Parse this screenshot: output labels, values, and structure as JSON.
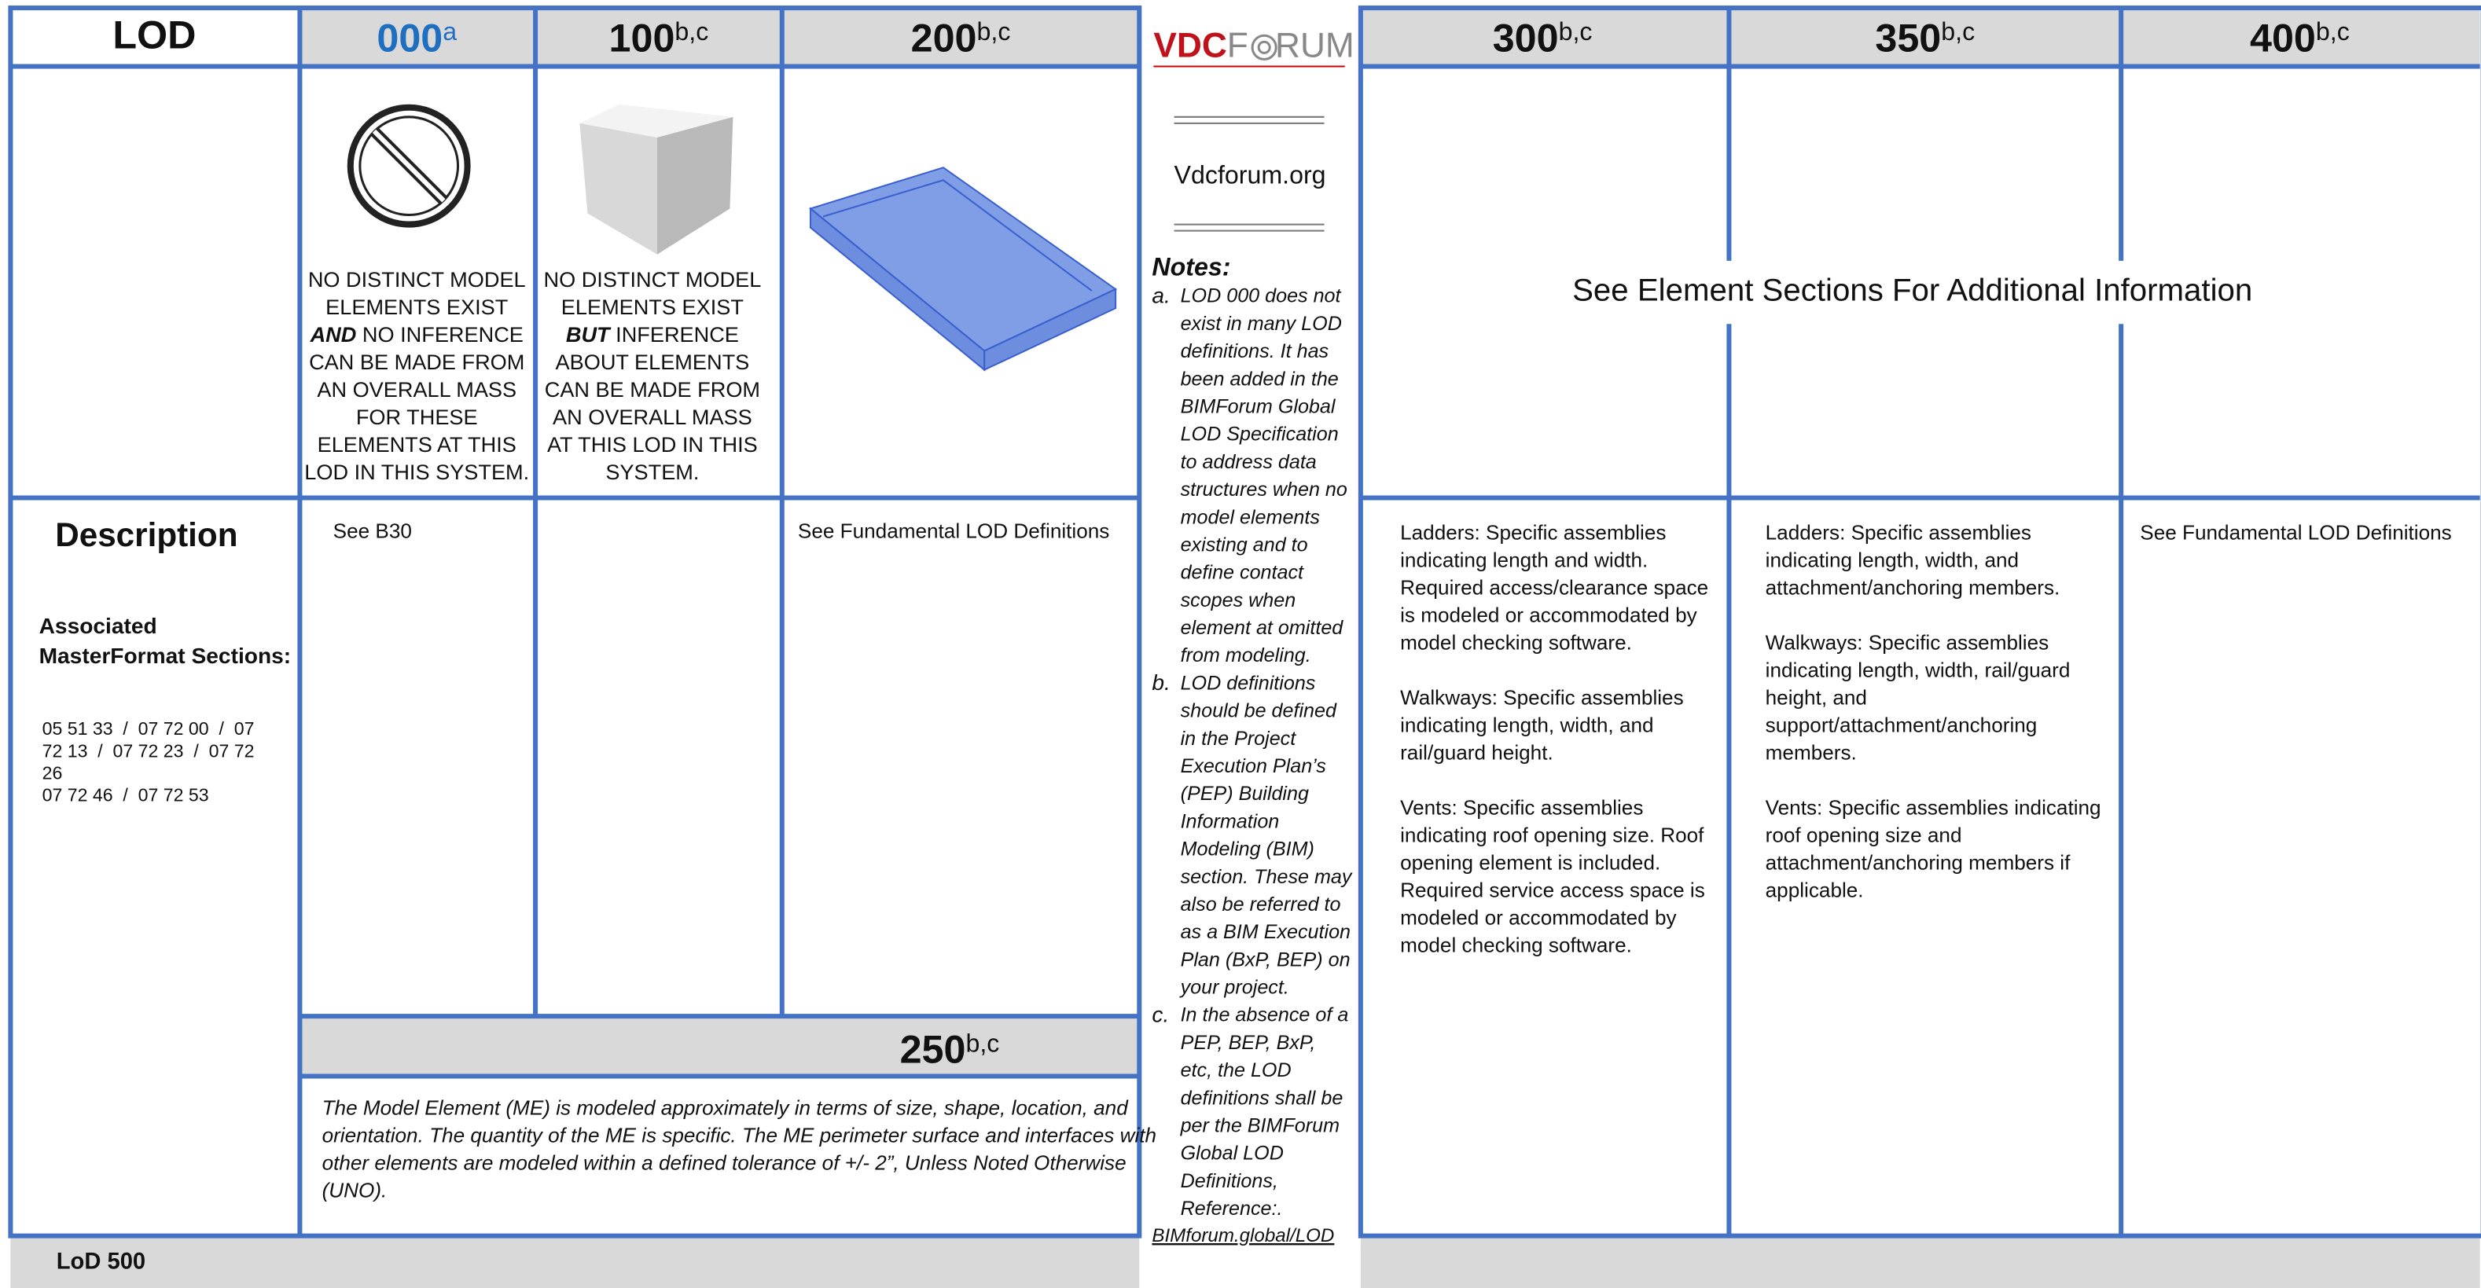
{
  "left_table": {
    "corner": "LOD",
    "columns": [
      {
        "level": "000",
        "note": "a"
      },
      {
        "level": "100",
        "note": "b,c"
      },
      {
        "level": "200",
        "note": "b,c"
      }
    ],
    "captions": [
      [
        [
          "NO DISTINCT MODEL"
        ],
        [
          "ELEMENTS EXIST"
        ],
        [
          "AND",
          " NO INFERENCE"
        ],
        [
          "CAN BE MADE FROM"
        ],
        [
          "AN OVERALL MASS"
        ],
        [
          "FOR THESE"
        ],
        [
          "ELEMENTS AT THIS"
        ],
        [
          "LOD IN THIS SYSTEM."
        ]
      ],
      [
        [
          "NO DISTINCT MODEL"
        ],
        [
          "ELEMENTS EXIST"
        ],
        [
          "BUT",
          " INFERENCE"
        ],
        [
          "ABOUT ELEMENTS"
        ],
        [
          "CAN BE MADE FROM"
        ],
        [
          "AN OVERALL MASS"
        ],
        [
          "AT THIS LOD IN THIS"
        ],
        [
          "SYSTEM."
        ]
      ]
    ],
    "description_title": "Description",
    "masterformat_title": [
      "Associated",
      "MasterFormat Sections:"
    ],
    "masterformat_codes": [
      "05 51 33  /  07 72 00  /  07",
      "72 13  /  07 72 23  /  07 72",
      "26",
      "07 72 46  /  07 72 53"
    ],
    "cells": {
      "000": "See B30",
      "200": "See Fundamental LOD Definitions"
    },
    "lod_250": {
      "level": "250",
      "note": "b,c",
      "text": [
        "The Model Element (ME) is modeled approximately in terms of size, shape, location, and",
        "orientation. The quantity of the ME is specific. The ME perimeter surface and interfaces with",
        "other elements are modeled within a defined tolerance of +/- 2”, Unless Noted Otherwise",
        "(UNO)."
      ]
    },
    "footer": "LoD 500"
  },
  "sidebar": {
    "logo": [
      "VDC",
      "F",
      "RUM"
    ],
    "site": "Vdcforum.org",
    "notes_title": "Notes:",
    "notes": [
      {
        "letter": "a.",
        "lines": [
          "LOD 000 does not",
          "exist in many LOD",
          "definitions. It has",
          "been added in the",
          "BIMForum Global",
          "LOD Specification",
          "to address data",
          "structures when no",
          "model elements",
          "existing and to",
          "define contact",
          "scopes when",
          "element at omitted",
          "from modeling."
        ]
      },
      {
        "letter": "b.",
        "lines": [
          "LOD definitions",
          "should be defined",
          "in the Project",
          "Execution Plan’s",
          "(PEP) Building",
          "Information",
          "Modeling (BIM)",
          "section. These may",
          "also be referred to",
          "as a BIM Execution",
          "Plan (BxP, BEP) on",
          "your project."
        ]
      },
      {
        "letter": "c.",
        "lines": [
          "In the absence of a",
          "PEP, BEP, BxP,",
          "etc, the LOD",
          "definitions shall be",
          "per the BIMForum",
          "Global LOD",
          "Definitions,",
          "Reference:."
        ]
      }
    ],
    "link": "BIMforum.global/LOD"
  },
  "right_table": {
    "columns": [
      {
        "level": "300",
        "note": "b,c"
      },
      {
        "level": "350",
        "note": "b,c"
      },
      {
        "level": "400",
        "note": "b,c"
      }
    ],
    "merged_text": "See Element Sections For Additional Information",
    "descriptions": [
      [
        [
          "Ladders: Specific assemblies",
          "indicating length and width.",
          "Required access/clearance space",
          "is modeled or accommodated by",
          "model checking software."
        ],
        [
          "Walkways: Specific assemblies",
          "indicating length, width, and",
          "rail/guard height."
        ],
        [
          "Vents: Specific assemblies",
          "indicating roof opening size. Roof",
          "opening element is included.",
          "Required service access space is",
          "modeled or accommodated by",
          "model checking software."
        ]
      ],
      [
        [
          "Ladders: Specific assemblies",
          "indicating length, width, and",
          "attachment/anchoring members."
        ],
        [
          "Walkways: Specific assemblies",
          "indicating length, width, rail/guard",
          "height, and",
          "support/attachment/anchoring",
          "members."
        ],
        [
          "Vents: Specific assemblies indicating",
          "roof opening size and",
          "attachment/anchoring members if",
          "applicable."
        ]
      ],
      [
        [
          "See Fundamental LOD Definitions"
        ]
      ]
    ]
  }
}
